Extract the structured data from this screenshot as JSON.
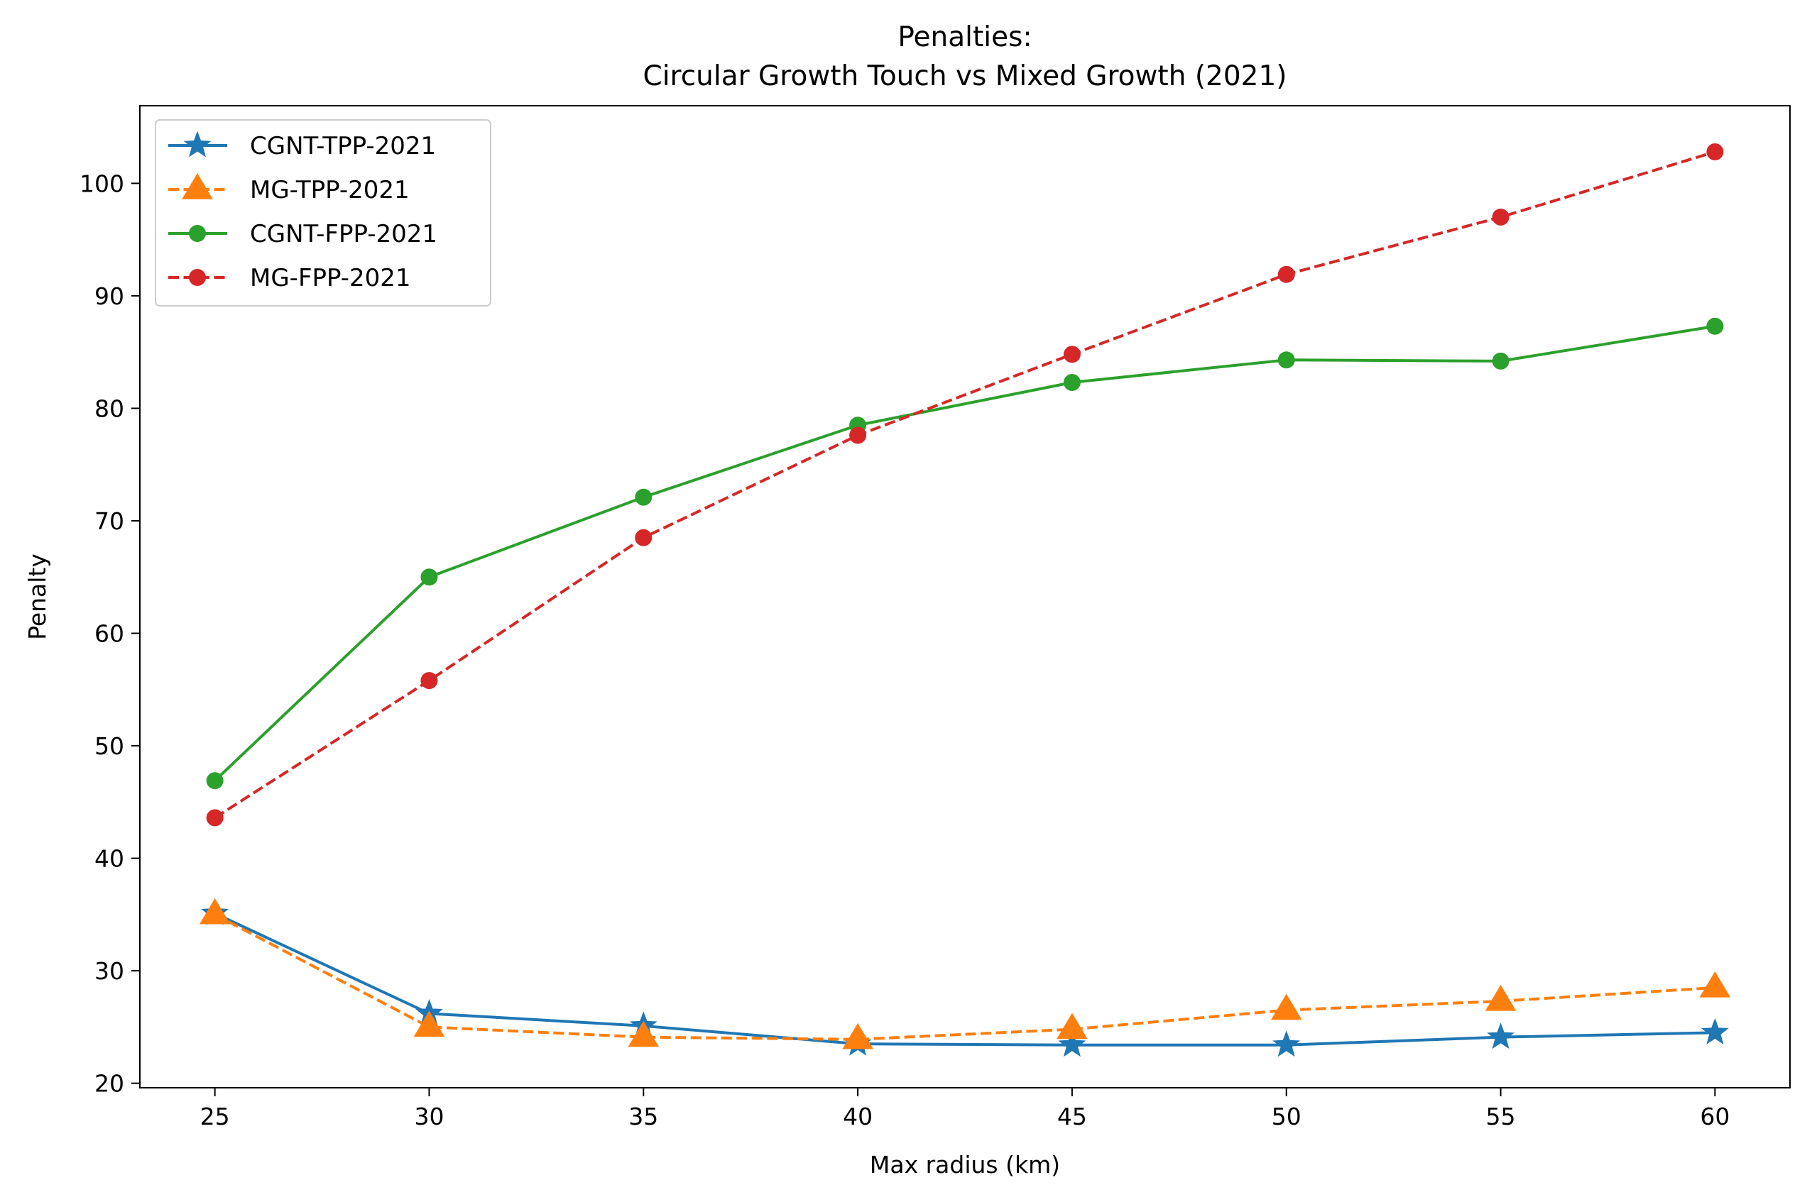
{
  "chart_data": {
    "type": "line",
    "title_lines": [
      "Penalties:",
      "Circular Growth Touch vs Mixed Growth (2021)"
    ],
    "xlabel": "Max radius (km)",
    "ylabel": "Penalty",
    "x": [
      25,
      30,
      35,
      40,
      45,
      50,
      55,
      60
    ],
    "xlim": [
      23.25,
      61.75
    ],
    "ylim": [
      19.6,
      106.9
    ],
    "xticks": [
      25,
      30,
      35,
      40,
      45,
      50,
      55,
      60
    ],
    "yticks": [
      20,
      30,
      40,
      50,
      60,
      70,
      80,
      90,
      100
    ],
    "grid": false,
    "legend_position": "upper-left",
    "series": [
      {
        "name": "CGNT-TPP-2021",
        "values": [
          35.1,
          26.2,
          25.1,
          23.5,
          23.4,
          23.4,
          24.1,
          24.5
        ],
        "color": "#1f77b4",
        "line_style": "solid",
        "marker": "star"
      },
      {
        "name": "MG-TPP-2021",
        "values": [
          35.0,
          25.0,
          24.1,
          23.9,
          24.8,
          26.5,
          27.3,
          28.5
        ],
        "color": "#ff7f0e",
        "line_style": "dashed",
        "marker": "triangle"
      },
      {
        "name": "CGNT-FPP-2021",
        "values": [
          46.9,
          65.0,
          72.1,
          78.5,
          82.3,
          84.3,
          84.2,
          87.3
        ],
        "color": "#2ca02c",
        "line_style": "solid",
        "marker": "circle"
      },
      {
        "name": "MG-FPP-2021",
        "values": [
          43.6,
          55.8,
          68.5,
          77.6,
          84.8,
          91.9,
          97.0,
          102.8
        ],
        "color": "#d62728",
        "line_style": "dashed",
        "marker": "circle"
      }
    ]
  }
}
